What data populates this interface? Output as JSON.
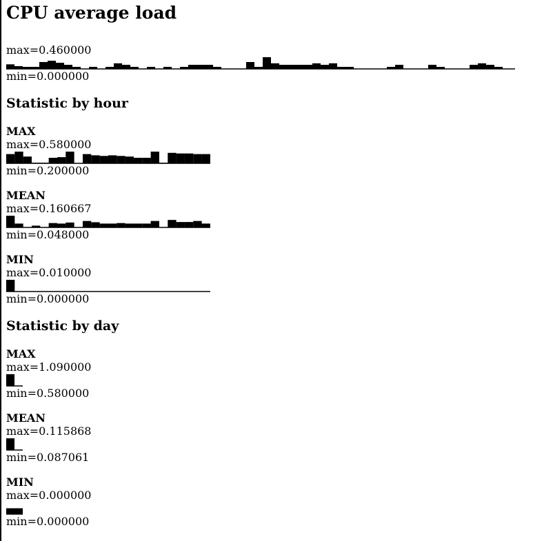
{
  "title": "CPU average load",
  "overall": {
    "max_label": "max=0.460000",
    "min_label": "min=0.000000",
    "values": [
      0.18,
      0.11,
      0.08,
      0.08,
      0.27,
      0.32,
      0.24,
      0.16,
      0.08,
      0,
      0.08,
      0,
      0.08,
      0.22,
      0.16,
      0.08,
      0,
      0.08,
      0,
      0.08,
      0,
      0.08,
      0.16,
      0.16,
      0.16,
      0.08,
      0,
      0,
      0,
      0.27,
      0.08,
      0.46,
      0.22,
      0.16,
      0.16,
      0.16,
      0.16,
      0.22,
      0.16,
      0.22,
      0.08,
      0.08,
      0,
      0,
      0,
      0,
      0.08,
      0.16,
      0,
      0,
      0,
      0.16,
      0.08,
      0,
      0,
      0,
      0.16,
      0.22,
      0.16,
      0.08,
      0
    ]
  },
  "sections": [
    {
      "heading": "Statistic by hour",
      "charts": [
        {
          "label": "MAX",
          "max_label": "max=0.580000",
          "min_label": "min=0.200000",
          "values": [
            0.5,
            0.58,
            0.42,
            0.22,
            0.22,
            0.38,
            0.4,
            0.58,
            0.2,
            0.5,
            0.46,
            0.44,
            0.46,
            0.44,
            0.42,
            0.38,
            0.38,
            0.58,
            0.22,
            0.54,
            0.52,
            0.52,
            0.5,
            0.5
          ]
        },
        {
          "label": "MEAN",
          "max_label": "max=0.160667",
          "min_label": "min=0.048000",
          "values": [
            0.160667,
            0.085,
            0.05,
            0.065,
            0.048,
            0.09,
            0.085,
            0.095,
            0.05,
            0.11,
            0.098,
            0.085,
            0.085,
            0.09,
            0.085,
            0.085,
            0.085,
            0.11,
            0.05,
            0.12,
            0.1,
            0.1,
            0.11,
            0.085
          ]
        },
        {
          "label": "MIN",
          "max_label": "max=0.010000",
          "min_label": "min=0.000000",
          "values": [
            0.01,
            0,
            0,
            0,
            0,
            0,
            0,
            0,
            0,
            0,
            0,
            0,
            0,
            0,
            0,
            0,
            0,
            0,
            0,
            0,
            0,
            0,
            0,
            0
          ]
        }
      ]
    },
    {
      "heading": "Statistic by day",
      "charts": [
        {
          "label": "MAX",
          "max_label": "max=1.090000",
          "min_label": "min=0.580000",
          "values": [
            1.09,
            0.58
          ]
        },
        {
          "label": "MEAN",
          "max_label": "max=0.115868",
          "min_label": "min=0.087061",
          "values": [
            0.115868,
            0.087061
          ]
        },
        {
          "label": "MIN",
          "max_label": "max=0.000000",
          "min_label": "min=0.000000",
          "values": [
            0,
            0
          ]
        }
      ]
    }
  ]
}
